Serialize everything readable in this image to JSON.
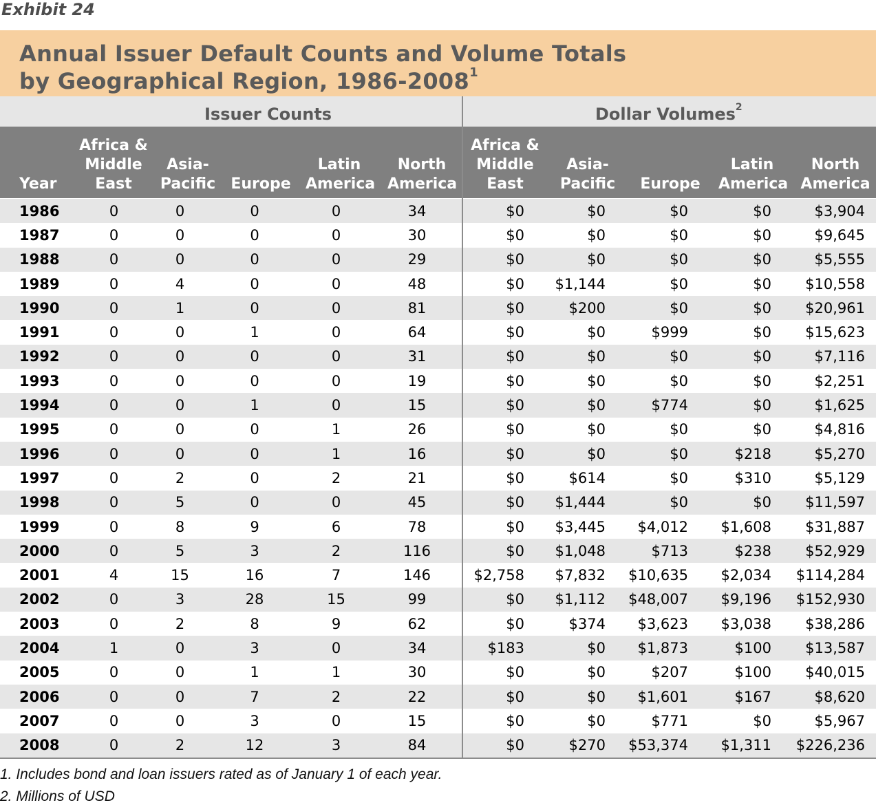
{
  "exhibit_label": "Exhibit 24",
  "title": {
    "line1": "Annual Issuer Default Counts and Volume Totals",
    "line2": "by Geographical Region, 1986-2008",
    "line2_footnote": "1"
  },
  "groups": {
    "issuer_counts": "Issuer Counts",
    "dollar_volumes": "Dollar Volumes",
    "dollar_volumes_footnote": "2"
  },
  "columns": {
    "year": "Year",
    "africa": [
      "Africa &",
      "Middle",
      "East"
    ],
    "asia": [
      "Asia-",
      "Pacific"
    ],
    "europe": [
      "Europe"
    ],
    "latin": [
      "Latin",
      "America"
    ],
    "north": [
      "North",
      "America"
    ]
  },
  "rows": [
    {
      "year": "1986",
      "counts": [
        "0",
        "0",
        "0",
        "0",
        "34"
      ],
      "volumes": [
        "$0",
        "$0",
        "$0",
        "$0",
        "$3,904"
      ]
    },
    {
      "year": "1987",
      "counts": [
        "0",
        "0",
        "0",
        "0",
        "30"
      ],
      "volumes": [
        "$0",
        "$0",
        "$0",
        "$0",
        "$9,645"
      ]
    },
    {
      "year": "1988",
      "counts": [
        "0",
        "0",
        "0",
        "0",
        "29"
      ],
      "volumes": [
        "$0",
        "$0",
        "$0",
        "$0",
        "$5,555"
      ]
    },
    {
      "year": "1989",
      "counts": [
        "0",
        "4",
        "0",
        "0",
        "48"
      ],
      "volumes": [
        "$0",
        "$1,144",
        "$0",
        "$0",
        "$10,558"
      ]
    },
    {
      "year": "1990",
      "counts": [
        "0",
        "1",
        "0",
        "0",
        "81"
      ],
      "volumes": [
        "$0",
        "$200",
        "$0",
        "$0",
        "$20,961"
      ]
    },
    {
      "year": "1991",
      "counts": [
        "0",
        "0",
        "1",
        "0",
        "64"
      ],
      "volumes": [
        "$0",
        "$0",
        "$999",
        "$0",
        "$15,623"
      ]
    },
    {
      "year": "1992",
      "counts": [
        "0",
        "0",
        "0",
        "0",
        "31"
      ],
      "volumes": [
        "$0",
        "$0",
        "$0",
        "$0",
        "$7,116"
      ]
    },
    {
      "year": "1993",
      "counts": [
        "0",
        "0",
        "0",
        "0",
        "19"
      ],
      "volumes": [
        "$0",
        "$0",
        "$0",
        "$0",
        "$2,251"
      ]
    },
    {
      "year": "1994",
      "counts": [
        "0",
        "0",
        "1",
        "0",
        "15"
      ],
      "volumes": [
        "$0",
        "$0",
        "$774",
        "$0",
        "$1,625"
      ]
    },
    {
      "year": "1995",
      "counts": [
        "0",
        "0",
        "0",
        "1",
        "26"
      ],
      "volumes": [
        "$0",
        "$0",
        "$0",
        "$0",
        "$4,816"
      ]
    },
    {
      "year": "1996",
      "counts": [
        "0",
        "0",
        "0",
        "1",
        "16"
      ],
      "volumes": [
        "$0",
        "$0",
        "$0",
        "$218",
        "$5,270"
      ]
    },
    {
      "year": "1997",
      "counts": [
        "0",
        "2",
        "0",
        "2",
        "21"
      ],
      "volumes": [
        "$0",
        "$614",
        "$0",
        "$310",
        "$5,129"
      ]
    },
    {
      "year": "1998",
      "counts": [
        "0",
        "5",
        "0",
        "0",
        "45"
      ],
      "volumes": [
        "$0",
        "$1,444",
        "$0",
        "$0",
        "$11,597"
      ]
    },
    {
      "year": "1999",
      "counts": [
        "0",
        "8",
        "9",
        "6",
        "78"
      ],
      "volumes": [
        "$0",
        "$3,445",
        "$4,012",
        "$1,608",
        "$31,887"
      ]
    },
    {
      "year": "2000",
      "counts": [
        "0",
        "5",
        "3",
        "2",
        "116"
      ],
      "volumes": [
        "$0",
        "$1,048",
        "$713",
        "$238",
        "$52,929"
      ]
    },
    {
      "year": "2001",
      "counts": [
        "4",
        "15",
        "16",
        "7",
        "146"
      ],
      "volumes": [
        "$2,758",
        "$7,832",
        "$10,635",
        "$2,034",
        "$114,284"
      ]
    },
    {
      "year": "2002",
      "counts": [
        "0",
        "3",
        "28",
        "15",
        "99"
      ],
      "volumes": [
        "$0",
        "$1,112",
        "$48,007",
        "$9,196",
        "$152,930"
      ]
    },
    {
      "year": "2003",
      "counts": [
        "0",
        "2",
        "8",
        "9",
        "62"
      ],
      "volumes": [
        "$0",
        "$374",
        "$3,623",
        "$3,038",
        "$38,286"
      ]
    },
    {
      "year": "2004",
      "counts": [
        "1",
        "0",
        "3",
        "0",
        "34"
      ],
      "volumes": [
        "$183",
        "$0",
        "$1,873",
        "$100",
        "$13,587"
      ]
    },
    {
      "year": "2005",
      "counts": [
        "0",
        "0",
        "1",
        "1",
        "30"
      ],
      "volumes": [
        "$0",
        "$0",
        "$207",
        "$100",
        "$40,015"
      ]
    },
    {
      "year": "2006",
      "counts": [
        "0",
        "0",
        "7",
        "2",
        "22"
      ],
      "volumes": [
        "$0",
        "$0",
        "$1,601",
        "$167",
        "$8,620"
      ]
    },
    {
      "year": "2007",
      "counts": [
        "0",
        "0",
        "3",
        "0",
        "15"
      ],
      "volumes": [
        "$0",
        "$0",
        "$771",
        "$0",
        "$5,967"
      ]
    },
    {
      "year": "2008",
      "counts": [
        "0",
        "2",
        "12",
        "3",
        "84"
      ],
      "volumes": [
        "$0",
        "$270",
        "$53,374",
        "$1,311",
        "$226,236"
      ]
    }
  ],
  "footnotes": [
    "1. Includes bond and loan issuers rated as of January 1 of each year.",
    "2. Millions of USD"
  ],
  "colors": {
    "title_band": "#f7d0a0",
    "header_band": "#808080",
    "stripe": "#e6e6e6",
    "title_text": "#5a5a5a"
  }
}
